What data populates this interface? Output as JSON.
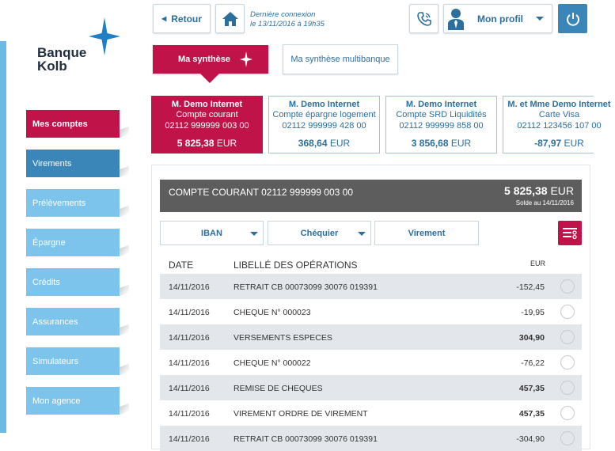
{
  "brand": {
    "line1": "Banque",
    "line2": "Kolb"
  },
  "topbar": {
    "back_label": "Retour",
    "last_login_line1": "Dernière connexion",
    "last_login_line2": "le 13/11/2016 à 19h35",
    "profile_label": "Mon profil"
  },
  "nav": {
    "items": [
      {
        "label": "Mes comptes"
      },
      {
        "label": "Virements"
      },
      {
        "label": "Prélèvements"
      },
      {
        "label": "Épargne"
      },
      {
        "label": "Crédits"
      },
      {
        "label": "Assurances"
      },
      {
        "label": "Simulateurs"
      },
      {
        "label": "Mon agence"
      }
    ]
  },
  "tabs": {
    "synthese": "Ma synthèse",
    "multibanque": "Ma synthèse multibanque"
  },
  "accounts": [
    {
      "holder": "M. Demo Internet",
      "type": "Compte courant",
      "number": "02112 999999 003 00",
      "amount": "5 825,38",
      "currency": "EUR"
    },
    {
      "holder": "M. Demo Internet",
      "type": "Compte épargne logement",
      "number": "02112 999999 428 00",
      "amount": "368,64",
      "currency": "EUR"
    },
    {
      "holder": "M. Demo Internet",
      "type": "Compte SRD Liquidités",
      "number": "02112 999999 858 00",
      "amount": "3 856,68",
      "currency": "EUR"
    },
    {
      "holder": "M. et Mme Demo Internet",
      "type": "Carte Visa",
      "number": "02112 123456 107 00",
      "amount": "-87,97",
      "currency": "EUR"
    }
  ],
  "account_detail": {
    "title": "COMPTE COURANT 02112 999999 003 00",
    "amount": "5 825,38",
    "currency": "EUR",
    "balance_date": "Solde au 14/11/2016"
  },
  "actions": {
    "iban": "IBAN",
    "chequier": "Chéquier",
    "virement": "Virement"
  },
  "table": {
    "headers": {
      "date": "DATE",
      "label": "LIBELLÉ DES OPÉRATIONS",
      "currency": "EUR"
    },
    "rows": [
      {
        "date": "14/11/2016",
        "label": "RETRAIT CB 00073099 30076 019391",
        "amount": "-152,45"
      },
      {
        "date": "14/11/2016",
        "label": "CHEQUE N° 000023",
        "amount": "-19,95"
      },
      {
        "date": "14/11/2016",
        "label": "VERSEMENTS ESPECES",
        "amount": "304,90"
      },
      {
        "date": "14/11/2016",
        "label": "CHEQUE N° 000022",
        "amount": "-76,22"
      },
      {
        "date": "14/11/2016",
        "label": "REMISE DE CHEQUES",
        "amount": "457,35"
      },
      {
        "date": "14/11/2016",
        "label": "VIREMENT ORDRE DE VIREMENT",
        "amount": "457,35"
      },
      {
        "date": "14/11/2016",
        "label": "RETRAIT CB 00073099 30076 019391",
        "amount": "-304,90"
      }
    ]
  },
  "colors": {
    "brand_red": "#c0134a",
    "brand_blue": "#3a86b9",
    "nav_blue": "#7cc4ec",
    "text_blue": "#2c6f9c"
  }
}
